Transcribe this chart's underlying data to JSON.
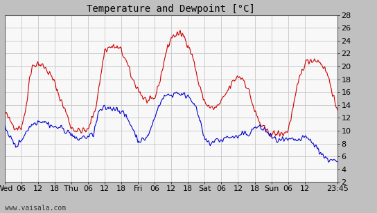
{
  "title": "Temperature and Dewpoint [°C]",
  "watermark": "www.vaisala.com",
  "ylim": [
    2,
    28
  ],
  "yticks": [
    2,
    4,
    6,
    8,
    10,
    12,
    14,
    16,
    18,
    20,
    22,
    24,
    26,
    28
  ],
  "temp_color": "#cc0000",
  "dew_color": "#0000cc",
  "outer_bg": "#c0c0c0",
  "plot_bg": "#f8f8f8",
  "grid_color": "#cccccc",
  "title_fontsize": 10,
  "tick_fontsize": 8,
  "line_width": 0.8,
  "xtick_labels": [
    "Wed",
    "06",
    "12",
    "18",
    "Thu",
    "06",
    "12",
    "18",
    "Fri",
    "06",
    "12",
    "18",
    "Sat",
    "06",
    "12",
    "18",
    "Sun",
    "06",
    "12",
    "23:45"
  ],
  "xtick_positions": [
    0,
    6,
    12,
    18,
    24,
    30,
    36,
    42,
    48,
    54,
    60,
    66,
    72,
    78,
    84,
    90,
    96,
    102,
    108,
    119.75
  ],
  "temp_waypoints_t": [
    0,
    2,
    4,
    6,
    8,
    9,
    10,
    12,
    14,
    16,
    18,
    20,
    22,
    24,
    26,
    28,
    30,
    33,
    36,
    38,
    40,
    42,
    44,
    46,
    48,
    50,
    52,
    54,
    56,
    58,
    60,
    62,
    64,
    66,
    68,
    70,
    72,
    74,
    76,
    78,
    80,
    82,
    84,
    86,
    88,
    90,
    92,
    94,
    96,
    98,
    100,
    102,
    104,
    106,
    108,
    110,
    112,
    114,
    116,
    118,
    119.75
  ],
  "temp_waypoints_v": [
    13.0,
    11.5,
    10.5,
    10.5,
    14.0,
    18.5,
    20.0,
    20.5,
    20.0,
    19.0,
    17.5,
    15.0,
    13.0,
    10.5,
    10.0,
    10.0,
    10.0,
    14.0,
    22.5,
    23.0,
    23.0,
    22.5,
    20.5,
    18.0,
    16.5,
    15.0,
    14.5,
    15.0,
    18.0,
    22.0,
    24.5,
    25.0,
    25.0,
    23.5,
    21.0,
    17.0,
    14.5,
    13.5,
    13.5,
    14.5,
    16.0,
    17.5,
    18.5,
    18.0,
    16.0,
    13.0,
    11.0,
    10.0,
    9.5,
    9.5,
    9.5,
    10.0,
    14.0,
    18.0,
    20.5,
    21.0,
    21.0,
    20.5,
    19.0,
    16.0,
    12.5
  ],
  "dew_waypoints_t": [
    0,
    2,
    4,
    6,
    8,
    10,
    12,
    14,
    16,
    18,
    20,
    22,
    24,
    26,
    28,
    30,
    32,
    34,
    36,
    38,
    40,
    42,
    44,
    46,
    48,
    50,
    52,
    54,
    56,
    58,
    60,
    62,
    64,
    66,
    68,
    70,
    72,
    74,
    76,
    78,
    80,
    82,
    84,
    86,
    88,
    90,
    92,
    94,
    96,
    98,
    100,
    102,
    104,
    106,
    108,
    110,
    112,
    114,
    116,
    118,
    119.75
  ],
  "dew_waypoints_v": [
    11.0,
    9.0,
    7.5,
    8.5,
    10.0,
    11.0,
    11.5,
    11.5,
    11.0,
    10.5,
    10.5,
    10.0,
    9.5,
    8.5,
    9.0,
    9.0,
    9.5,
    13.0,
    13.5,
    13.5,
    13.5,
    13.0,
    12.0,
    10.5,
    8.5,
    8.5,
    9.5,
    12.0,
    14.5,
    15.5,
    15.5,
    16.0,
    15.5,
    15.5,
    14.5,
    12.0,
    8.5,
    8.0,
    8.5,
    8.5,
    9.0,
    9.0,
    9.0,
    9.5,
    9.5,
    10.5,
    10.5,
    10.0,
    9.0,
    8.5,
    8.5,
    8.5,
    8.5,
    8.5,
    9.0,
    8.5,
    7.5,
    6.5,
    5.5,
    5.5,
    5.0
  ]
}
